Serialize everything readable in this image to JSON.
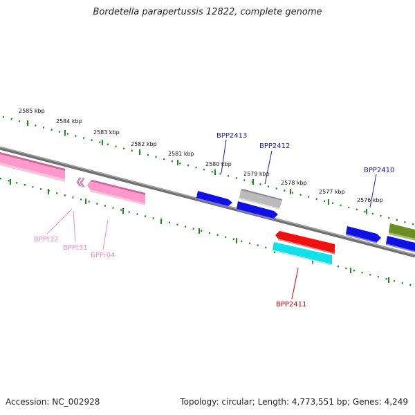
{
  "title": "Bordetella parapertussis 12822, complete genome",
  "accession": "Accession: NC_002928",
  "summary": "Topology: circular; Length: 4,773,551 bp; Genes: 4,249",
  "scale_labels": [
    "2585 kbp",
    "2584 kbp",
    "2583 kbp",
    "2582 kbp",
    "2581 kbp",
    "2580 kbp",
    "2579 kbp",
    "2578 kbp",
    "2577 kbp",
    "2576 kbp"
  ],
  "gene_labels": {
    "bpp2413": "BPP2413",
    "bpp2412": "BPP2412",
    "bpp2410": "BPP2410",
    "bpp2411": "BPP2411",
    "bppt32": "BPPt32",
    "bppt31": "BPPt31",
    "bppr04": "BPPr04"
  },
  "colors": {
    "cds_blue": "#1010e0",
    "cds_red": "#ee1111",
    "cds_cyan": "#11e0e8",
    "cds_gray": "#bbbbbb",
    "cds_olive": "#6b8e23",
    "rna_pink": "#ff99cc",
    "label_blue": "#1a1aa6",
    "label_red": "#cc0000",
    "label_pink": "#f28cc0",
    "tick_green": "#1a8a1a",
    "backbone": "#8a8a8a"
  }
}
